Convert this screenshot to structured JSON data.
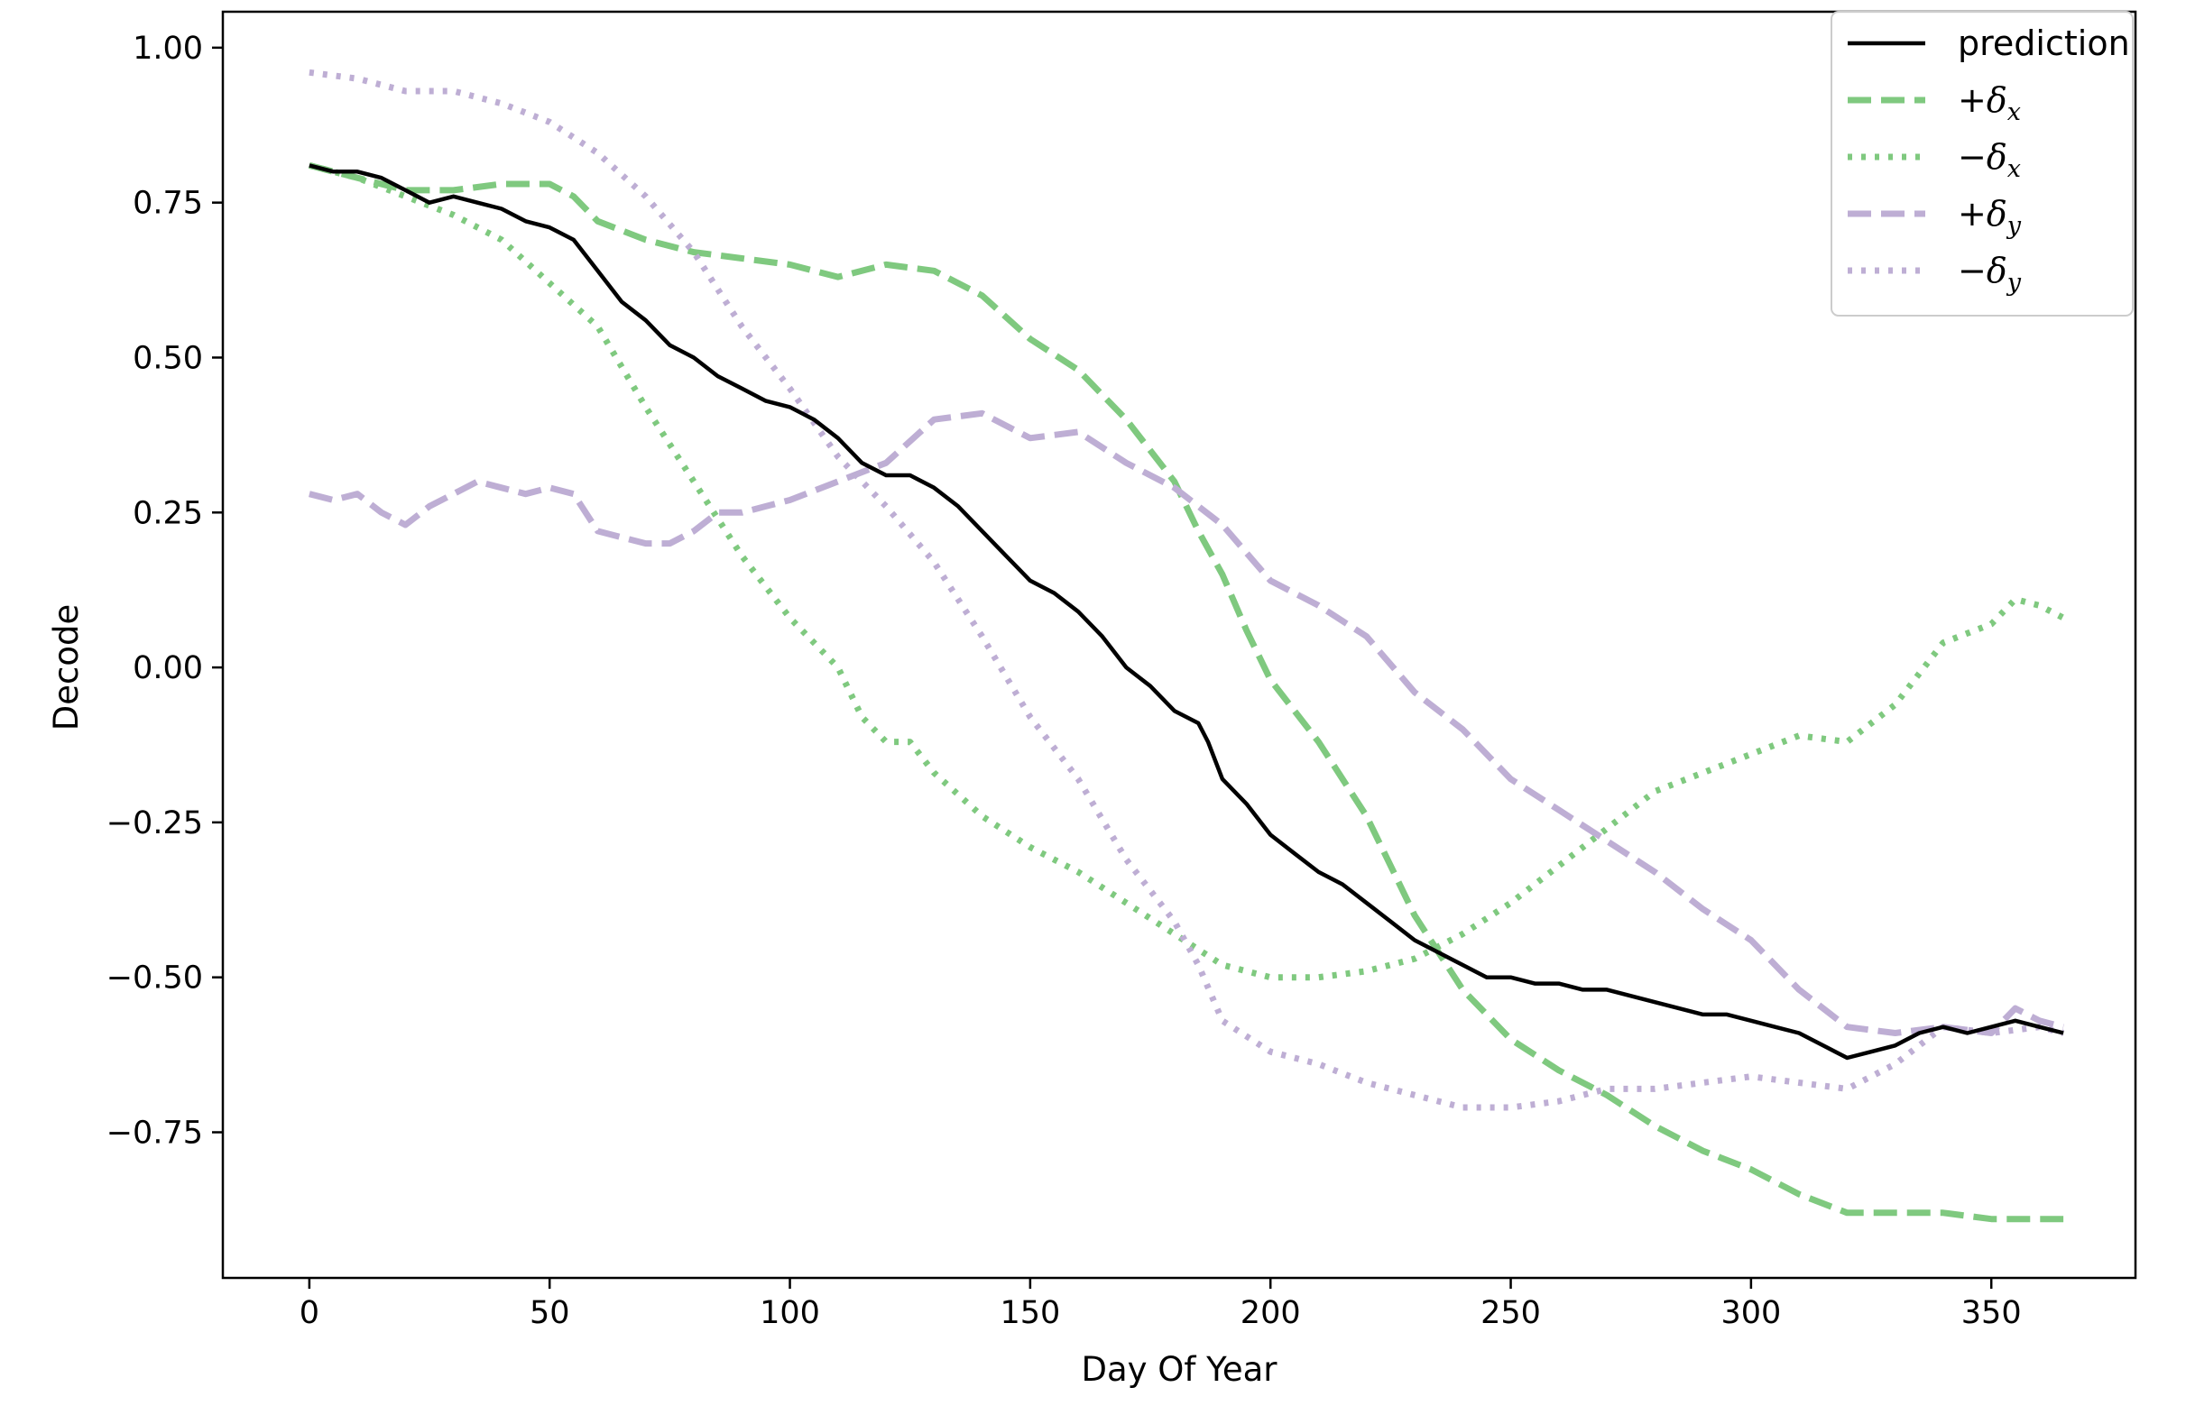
{
  "chart_data": {
    "type": "line",
    "title": "",
    "xlabel": "Day Of Year",
    "ylabel": "Decode",
    "xlim": [
      -18,
      380
    ],
    "ylim": [
      -0.985,
      1.058
    ],
    "xticks": [
      0,
      50,
      100,
      150,
      200,
      250,
      300,
      350
    ],
    "yticks": [
      1.0,
      0.75,
      0.5,
      0.25,
      0.0,
      -0.25,
      -0.5,
      -0.75
    ],
    "xtick_labels": [
      "0",
      "50",
      "100",
      "150",
      "200",
      "250",
      "300",
      "350"
    ],
    "ytick_labels": [
      "1.00",
      "0.75",
      "0.50",
      "0.25",
      "0.00",
      "−0.25",
      "−0.50",
      "−0.75"
    ],
    "grid": false,
    "legend_position": "top-right",
    "series": [
      {
        "name": "prediction",
        "legend_sign": "",
        "legend_sym": "",
        "legend_sub": "",
        "color": "#000000",
        "style": "solid",
        "x": [
          0,
          5,
          10,
          15,
          20,
          25,
          30,
          35,
          40,
          45,
          50,
          55,
          60,
          65,
          70,
          75,
          80,
          85,
          90,
          95,
          100,
          105,
          110,
          115,
          120,
          125,
          130,
          135,
          140,
          145,
          150,
          155,
          160,
          165,
          170,
          175,
          180,
          185,
          187,
          190,
          195,
          200,
          205,
          210,
          215,
          220,
          225,
          230,
          235,
          240,
          245,
          250,
          255,
          260,
          265,
          270,
          275,
          280,
          285,
          290,
          295,
          300,
          305,
          310,
          315,
          320,
          325,
          330,
          335,
          340,
          345,
          350,
          355,
          360,
          365
        ],
        "y": [
          0.81,
          0.8,
          0.8,
          0.79,
          0.77,
          0.75,
          0.76,
          0.75,
          0.74,
          0.72,
          0.71,
          0.69,
          0.64,
          0.59,
          0.56,
          0.52,
          0.5,
          0.47,
          0.45,
          0.43,
          0.42,
          0.4,
          0.37,
          0.33,
          0.31,
          0.31,
          0.29,
          0.26,
          0.22,
          0.18,
          0.14,
          0.12,
          0.09,
          0.05,
          0.0,
          -0.03,
          -0.07,
          -0.09,
          -0.12,
          -0.18,
          -0.22,
          -0.27,
          -0.3,
          -0.33,
          -0.35,
          -0.38,
          -0.41,
          -0.44,
          -0.46,
          -0.48,
          -0.5,
          -0.5,
          -0.51,
          -0.51,
          -0.52,
          -0.52,
          -0.53,
          -0.54,
          -0.55,
          -0.56,
          -0.56,
          -0.57,
          -0.58,
          -0.59,
          -0.61,
          -0.63,
          -0.62,
          -0.61,
          -0.59,
          -0.58,
          -0.59,
          -0.58,
          -0.57,
          -0.58,
          -0.59
        ]
      },
      {
        "name": "",
        "legend_sign": "+",
        "legend_sym": "δ",
        "legend_sub": "x",
        "color": "#7fc97f",
        "style": "dashed",
        "x": [
          0,
          10,
          20,
          30,
          40,
          50,
          55,
          60,
          70,
          80,
          90,
          100,
          110,
          120,
          130,
          140,
          150,
          160,
          170,
          180,
          185,
          190,
          195,
          200,
          205,
          210,
          215,
          220,
          225,
          230,
          235,
          240,
          250,
          260,
          270,
          280,
          290,
          300,
          310,
          320,
          330,
          340,
          350,
          360,
          365
        ],
        "y": [
          0.81,
          0.79,
          0.77,
          0.77,
          0.78,
          0.78,
          0.76,
          0.72,
          0.69,
          0.67,
          0.66,
          0.65,
          0.63,
          0.65,
          0.64,
          0.6,
          0.53,
          0.48,
          0.4,
          0.3,
          0.22,
          0.15,
          0.06,
          -0.02,
          -0.07,
          -0.12,
          -0.18,
          -0.24,
          -0.32,
          -0.4,
          -0.46,
          -0.52,
          -0.6,
          -0.65,
          -0.69,
          -0.74,
          -0.78,
          -0.81,
          -0.85,
          -0.88,
          -0.88,
          -0.88,
          -0.89,
          -0.89,
          -0.89
        ]
      },
      {
        "name": "",
        "legend_sign": "−",
        "legend_sym": "δ",
        "legend_sub": "x",
        "color": "#7fc97f",
        "style": "dotted",
        "x": [
          0,
          10,
          20,
          30,
          40,
          50,
          60,
          70,
          80,
          90,
          100,
          110,
          115,
          120,
          125,
          130,
          140,
          150,
          160,
          170,
          180,
          190,
          200,
          210,
          220,
          230,
          240,
          250,
          260,
          270,
          280,
          290,
          300,
          310,
          320,
          330,
          340,
          350,
          355,
          360,
          365
        ],
        "y": [
          0.81,
          0.79,
          0.76,
          0.73,
          0.69,
          0.62,
          0.55,
          0.42,
          0.3,
          0.18,
          0.08,
          0.0,
          -0.08,
          -0.12,
          -0.12,
          -0.17,
          -0.24,
          -0.29,
          -0.33,
          -0.38,
          -0.43,
          -0.48,
          -0.5,
          -0.5,
          -0.49,
          -0.47,
          -0.43,
          -0.38,
          -0.32,
          -0.26,
          -0.2,
          -0.17,
          -0.14,
          -0.11,
          -0.12,
          -0.06,
          0.04,
          0.07,
          0.11,
          0.1,
          0.08
        ]
      },
      {
        "name": "",
        "legend_sign": "+",
        "legend_sym": "δ",
        "legend_sub": "y",
        "color": "#beaed4",
        "style": "dashed",
        "x": [
          0,
          5,
          10,
          15,
          20,
          25,
          30,
          35,
          40,
          45,
          50,
          55,
          60,
          65,
          70,
          75,
          80,
          85,
          90,
          95,
          100,
          110,
          120,
          130,
          140,
          150,
          160,
          170,
          180,
          190,
          200,
          210,
          220,
          230,
          240,
          250,
          260,
          270,
          280,
          290,
          300,
          310,
          320,
          330,
          340,
          350,
          355,
          360,
          365
        ],
        "y": [
          0.28,
          0.27,
          0.28,
          0.25,
          0.23,
          0.26,
          0.28,
          0.3,
          0.29,
          0.28,
          0.29,
          0.28,
          0.22,
          0.21,
          0.2,
          0.2,
          0.22,
          0.25,
          0.25,
          0.26,
          0.27,
          0.3,
          0.33,
          0.4,
          0.41,
          0.37,
          0.38,
          0.33,
          0.29,
          0.23,
          0.14,
          0.1,
          0.05,
          -0.04,
          -0.1,
          -0.18,
          -0.23,
          -0.28,
          -0.33,
          -0.39,
          -0.44,
          -0.52,
          -0.58,
          -0.59,
          -0.58,
          -0.59,
          -0.55,
          -0.57,
          -0.58
        ]
      },
      {
        "name": "",
        "legend_sign": "−",
        "legend_sym": "δ",
        "legend_sub": "y",
        "color": "#beaed4",
        "style": "dotted",
        "x": [
          0,
          10,
          20,
          30,
          40,
          50,
          60,
          70,
          80,
          90,
          100,
          110,
          120,
          130,
          140,
          150,
          160,
          170,
          180,
          185,
          190,
          200,
          210,
          220,
          230,
          240,
          250,
          260,
          270,
          280,
          290,
          300,
          310,
          320,
          330,
          340,
          350,
          360,
          365
        ],
        "y": [
          0.96,
          0.95,
          0.93,
          0.93,
          0.91,
          0.88,
          0.83,
          0.76,
          0.67,
          0.55,
          0.45,
          0.34,
          0.26,
          0.17,
          0.05,
          -0.08,
          -0.18,
          -0.31,
          -0.41,
          -0.48,
          -0.57,
          -0.62,
          -0.64,
          -0.67,
          -0.69,
          -0.71,
          -0.71,
          -0.7,
          -0.68,
          -0.68,
          -0.67,
          -0.66,
          -0.67,
          -0.68,
          -0.64,
          -0.58,
          -0.59,
          -0.58,
          -0.59
        ]
      }
    ]
  }
}
